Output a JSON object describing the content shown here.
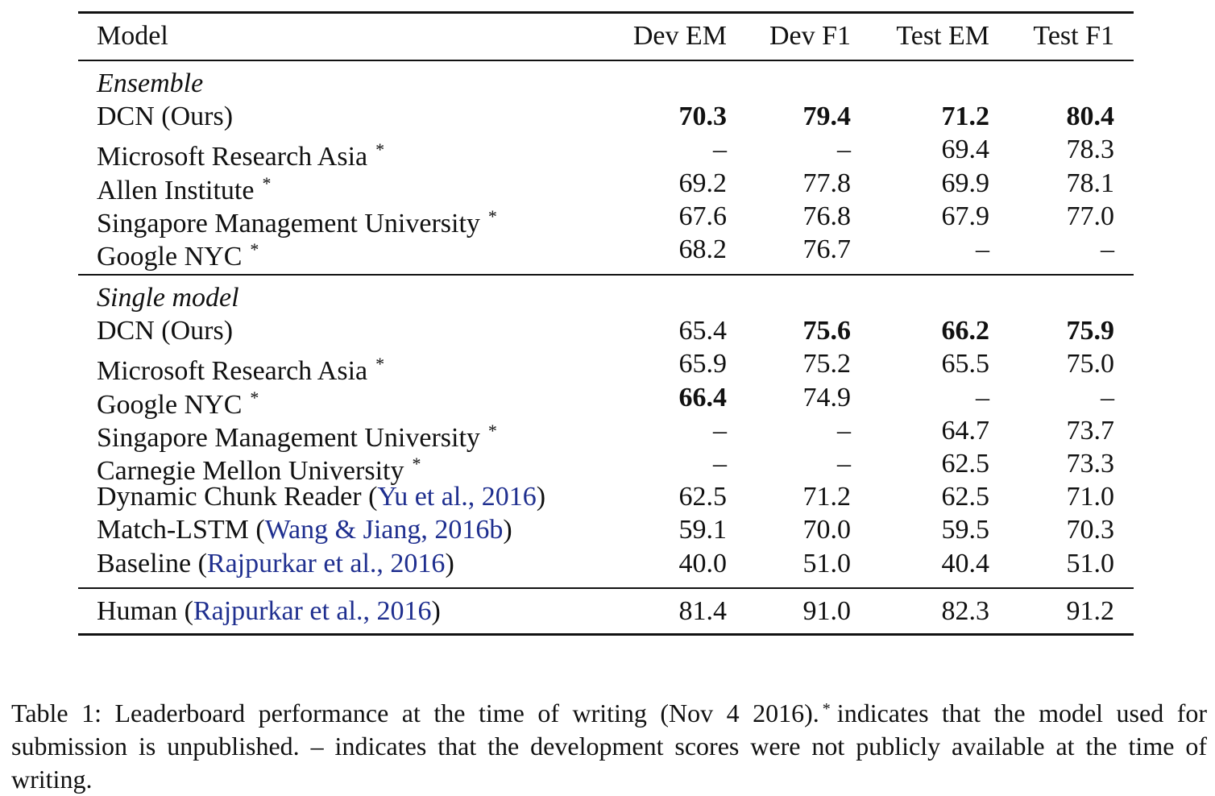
{
  "table": {
    "headers": [
      "Model",
      "Dev EM",
      "Dev F1",
      "Test EM",
      "Test F1"
    ],
    "sections": [
      {
        "label": "Ensemble",
        "rows": [
          {
            "model": "DCN (Ours)",
            "star": "",
            "cite": "",
            "values": [
              "70.3",
              "79.4",
              "71.2",
              "80.4"
            ],
            "bold": [
              true,
              true,
              true,
              true
            ]
          },
          {
            "model": "Microsoft Research Asia",
            "star": "*",
            "cite": "",
            "values": [
              "–",
              "–",
              "69.4",
              "78.3"
            ],
            "bold": [
              false,
              false,
              false,
              false
            ]
          },
          {
            "model": "Allen Institute",
            "star": "*",
            "cite": "",
            "values": [
              "69.2",
              "77.8",
              "69.9",
              "78.1"
            ],
            "bold": [
              false,
              false,
              false,
              false
            ]
          },
          {
            "model": "Singapore Management University",
            "star": "*",
            "cite": "",
            "values": [
              "67.6",
              "76.8",
              "67.9",
              "77.0"
            ],
            "bold": [
              false,
              false,
              false,
              false
            ]
          },
          {
            "model": "Google NYC",
            "star": "*",
            "cite": "",
            "values": [
              "68.2",
              "76.7",
              "–",
              "–"
            ],
            "bold": [
              false,
              false,
              false,
              false
            ]
          }
        ]
      },
      {
        "label": "Single model",
        "rows": [
          {
            "model": "DCN (Ours)",
            "star": "",
            "cite": "",
            "values": [
              "65.4",
              "75.6",
              "66.2",
              "75.9"
            ],
            "bold": [
              false,
              true,
              true,
              true
            ]
          },
          {
            "model": "Microsoft Research Asia",
            "star": "*",
            "cite": "",
            "values": [
              "65.9",
              "75.2",
              "65.5",
              "75.0"
            ],
            "bold": [
              false,
              false,
              false,
              false
            ]
          },
          {
            "model": "Google NYC",
            "star": "*",
            "cite": "",
            "values": [
              "66.4",
              "74.9",
              "–",
              "–"
            ],
            "bold": [
              true,
              false,
              false,
              false
            ]
          },
          {
            "model": "Singapore Management University",
            "star": "*",
            "cite": "",
            "values": [
              "–",
              "–",
              "64.7",
              "73.7"
            ],
            "bold": [
              false,
              false,
              false,
              false
            ]
          },
          {
            "model": "Carnegie Mellon University",
            "star": "*",
            "cite": "",
            "values": [
              "–",
              "–",
              "62.5",
              "73.3"
            ],
            "bold": [
              false,
              false,
              false,
              false
            ]
          },
          {
            "model": "Dynamic Chunk Reader",
            "star": "",
            "cite": "Yu et al., 2016",
            "values": [
              "62.5",
              "71.2",
              "62.5",
              "71.0"
            ],
            "bold": [
              false,
              false,
              false,
              false
            ]
          },
          {
            "model": "Match-LSTM",
            "star": "",
            "cite": "Wang & Jiang, 2016b",
            "values": [
              "59.1",
              "70.0",
              "59.5",
              "70.3"
            ],
            "bold": [
              false,
              false,
              false,
              false
            ]
          },
          {
            "model": "Baseline",
            "star": "",
            "cite": "Rajpurkar et al., 2016",
            "values": [
              "40.0",
              "51.0",
              "40.4",
              "51.0"
            ],
            "bold": [
              false,
              false,
              false,
              false
            ]
          }
        ]
      },
      {
        "label": "",
        "rows": [
          {
            "model": "Human",
            "star": "",
            "cite": "Rajpurkar et al., 2016",
            "values": [
              "81.4",
              "91.0",
              "82.3",
              "91.2"
            ],
            "bold": [
              false,
              false,
              false,
              false
            ]
          }
        ]
      }
    ]
  },
  "caption": {
    "part1": "Table 1:  Leaderboard performance at the time of writing (Nov 4 2016).",
    "star": "*",
    "part2": "indicates that the model used for submission is unpublished.  – indicates that the development scores were not publicly available at the time of writing."
  },
  "colors": {
    "citation": "#1f2f8f",
    "text": "#111111"
  }
}
